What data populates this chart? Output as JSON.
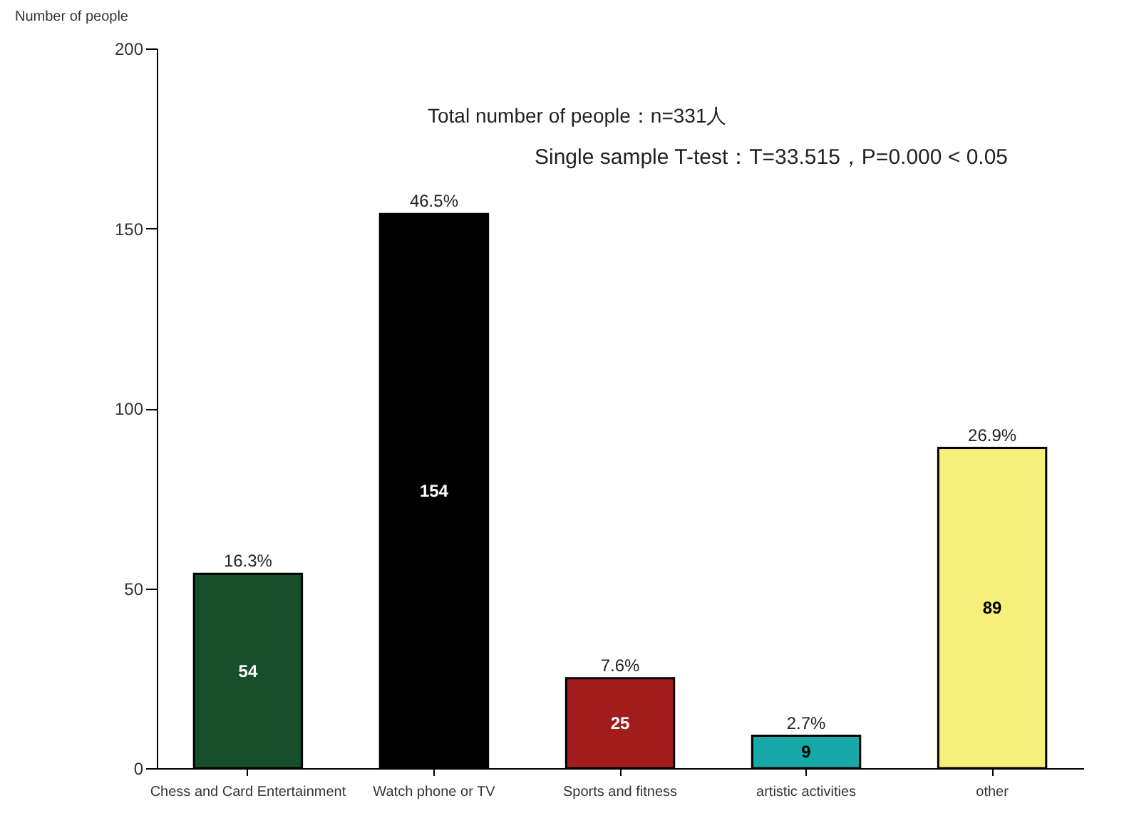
{
  "chart_data": {
    "type": "bar",
    "ylabel": "Number of people",
    "categories": [
      "Chess and Card Entertainment",
      "Watch phone  or TV",
      "Sports and fitness",
      "artistic activities",
      "other"
    ],
    "values": [
      54,
      154,
      25,
      9,
      89
    ],
    "colors": [
      "#174f2a",
      "#000000",
      "#a11c1c",
      "#17a8a8",
      "#f6f07a"
    ],
    "data_labels": true,
    "ylim": [
      0,
      200
    ],
    "yticks": [
      0,
      50,
      100,
      150,
      200
    ],
    "annotations": [
      "Total number of people：n=331人",
      "Single sample T-test：T=33.515，P=0.000 < 0.05",
      {
        "text": "16.3%",
        "x": "Chess and Card Entertainment",
        "y": 54
      },
      {
        "text": "46.5%",
        "x": "Watch phone  or TV",
        "y": 154
      },
      {
        "text": "7.6%",
        "x": "Sports and fitness",
        "y": 25
      },
      {
        "text": "2.7%",
        "x": "artistic activities",
        "y": 9
      },
      {
        "text": "26.9%",
        "x": "other",
        "y": 89
      }
    ]
  }
}
